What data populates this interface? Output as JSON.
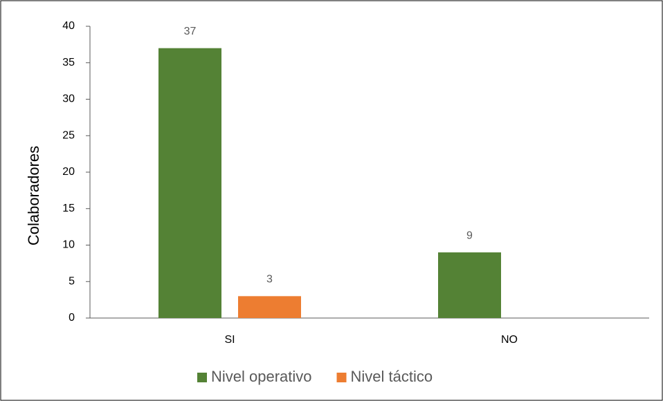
{
  "chart_data": {
    "type": "bar",
    "y_label": "Colaboradores",
    "categories": [
      "SI",
      "NO"
    ],
    "series": [
      {
        "name": "Nivel operativo",
        "color": "#548235",
        "values": [
          37,
          9
        ]
      },
      {
        "name": "Nivel táctico",
        "color": "#ed7d31",
        "values": [
          3,
          null
        ]
      }
    ],
    "ylim": [
      0,
      40
    ],
    "yticks": [
      0,
      5,
      10,
      15,
      20,
      25,
      30,
      35,
      40
    ],
    "grid": false,
    "legend": "bottom"
  }
}
